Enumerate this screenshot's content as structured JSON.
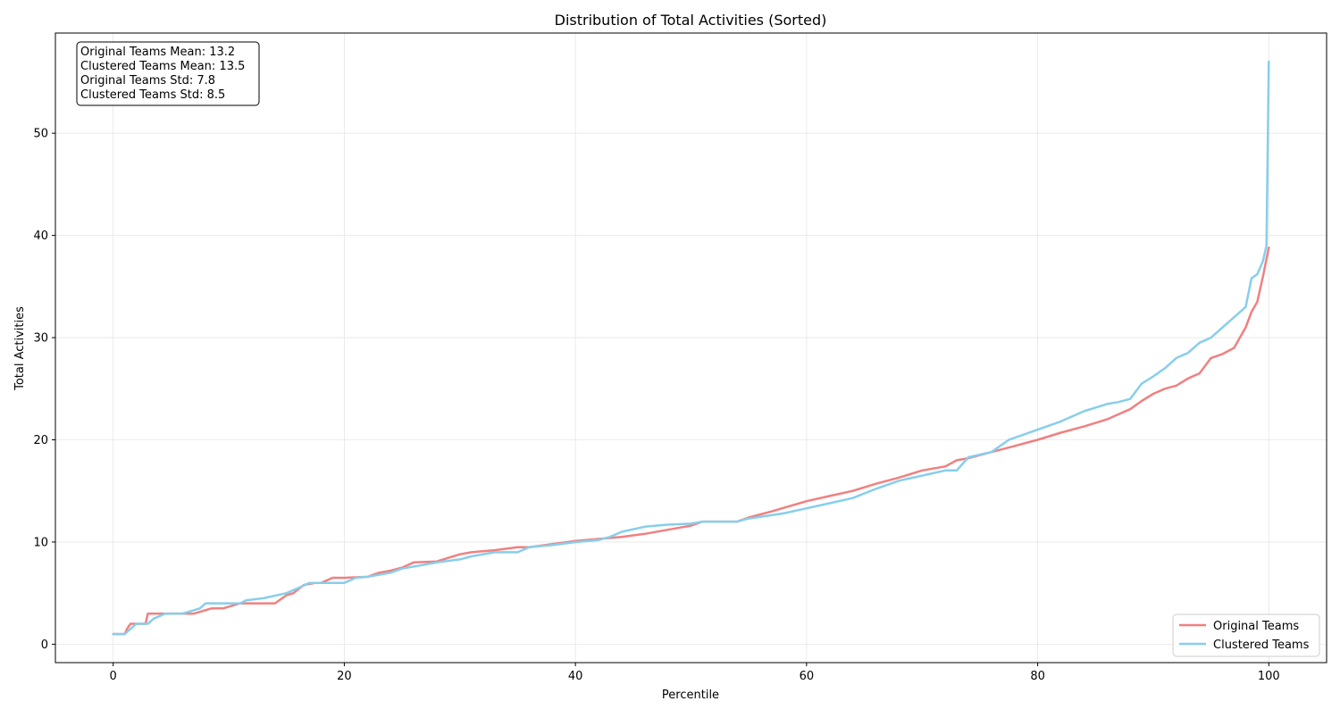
{
  "chart_data": {
    "type": "line",
    "title": "Distribution of Total Activities (Sorted)",
    "xlabel": "Percentile",
    "ylabel": "Total Activities",
    "xlim": [
      -5,
      105
    ],
    "ylim": [
      -1.8,
      59.8
    ],
    "x_ticks": [
      0,
      20,
      40,
      60,
      80,
      100
    ],
    "y_ticks": [
      0,
      10,
      20,
      30,
      40,
      50
    ],
    "grid": true,
    "legend_position": "lower-right",
    "colors": {
      "Original Teams": "#f08080",
      "Clustered Teams": "#87ceeb"
    },
    "stats": [
      "Original Teams Mean: 13.2",
      "Clustered Teams Mean: 13.5",
      "Original Teams Std: 7.8",
      "Clustered Teams Std: 8.5"
    ],
    "series": [
      {
        "name": "Original Teams",
        "x": [
          0,
          1,
          1.2,
          1.5,
          2.8,
          3,
          7,
          8.5,
          9.5,
          11,
          12,
          14,
          15,
          15.6,
          16.5,
          17.5,
          18,
          19,
          20,
          22,
          23,
          24,
          25,
          26,
          28,
          30,
          31,
          33,
          35,
          36,
          38,
          40,
          42,
          44,
          46,
          48,
          50,
          51,
          54,
          55,
          57,
          60,
          62,
          64,
          66,
          68,
          70,
          72,
          73,
          74,
          76,
          78,
          80,
          82,
          84,
          86,
          87,
          88,
          89,
          90,
          91,
          92,
          93,
          94,
          95,
          96,
          97,
          98,
          98.5,
          99,
          99.5,
          100
        ],
        "y": [
          1,
          1,
          1.5,
          2,
          2,
          3,
          3,
          3.5,
          3.5,
          4,
          4,
          4,
          4.8,
          5,
          5.8,
          6,
          6,
          6.5,
          6.5,
          6.6,
          7,
          7.2,
          7.5,
          8,
          8.1,
          8.8,
          9,
          9.2,
          9.5,
          9.5,
          9.8,
          10.1,
          10.3,
          10.5,
          10.8,
          11.2,
          11.6,
          12,
          12,
          12.4,
          13,
          14,
          14.5,
          15,
          15.7,
          16.3,
          17,
          17.4,
          18,
          18.2,
          18.8,
          19.4,
          20,
          20.7,
          21.3,
          22,
          22.5,
          23,
          23.8,
          24.5,
          25,
          25.3,
          26,
          26.5,
          28,
          28.4,
          29,
          31,
          32.5,
          33.5,
          36,
          38.8
        ]
      },
      {
        "name": "Clustered Teams",
        "x": [
          0,
          1,
          1.5,
          2,
          3,
          3.5,
          4.5,
          6,
          7.5,
          8,
          10,
          11,
          11.5,
          13,
          15,
          16,
          17,
          18,
          20,
          21,
          22,
          24,
          25,
          27,
          28,
          30,
          31,
          33,
          35,
          36,
          38,
          40,
          42,
          43,
          44,
          46,
          48,
          50,
          51,
          54,
          55,
          58,
          60,
          62,
          64,
          66,
          68,
          70,
          72,
          73,
          74,
          76,
          77.5,
          80,
          82,
          84,
          86,
          87,
          88,
          89,
          90,
          91,
          92,
          93,
          94,
          95,
          96,
          97,
          98,
          98.5,
          99,
          99.5,
          99.8,
          100
        ],
        "y": [
          1,
          1,
          1.5,
          2,
          2,
          2.5,
          3,
          3,
          3.5,
          4,
          4,
          4,
          4.3,
          4.5,
          5,
          5.5,
          6,
          6,
          6,
          6.5,
          6.6,
          7,
          7.4,
          7.8,
          8,
          8.3,
          8.6,
          9,
          9,
          9.5,
          9.7,
          10,
          10.2,
          10.5,
          11,
          11.5,
          11.7,
          11.8,
          12,
          12,
          12.3,
          12.8,
          13.3,
          13.8,
          14.3,
          15.2,
          16,
          16.5,
          17,
          17,
          18.3,
          18.8,
          20,
          21,
          21.8,
          22.8,
          23.5,
          23.7,
          24,
          25.5,
          26.2,
          27,
          28,
          28.5,
          29.5,
          30,
          31,
          32,
          33,
          35.8,
          36.2,
          37.5,
          39,
          57
        ]
      }
    ]
  }
}
